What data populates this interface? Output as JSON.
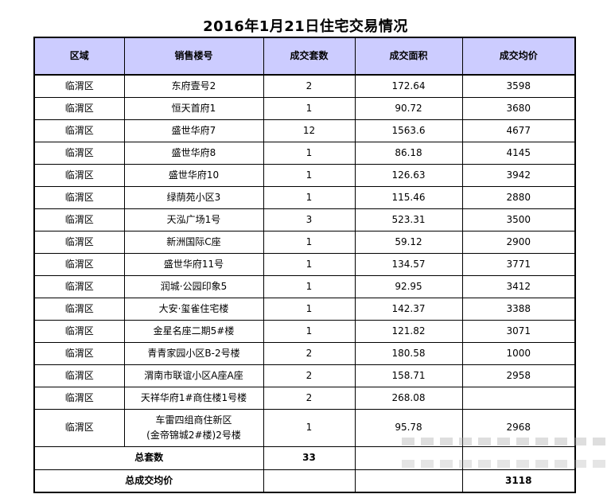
{
  "title": "2016年1月21日住宅交易情况",
  "colors": {
    "header_bg": "#ccccff",
    "border": "#000000",
    "text": "#000000"
  },
  "table": {
    "headers": [
      "区域",
      "销售楼号",
      "成交套数",
      "成交面积",
      "成交均价"
    ],
    "rows": [
      [
        "临渭区",
        "东府壹号2",
        "2",
        "172.64",
        "3598"
      ],
      [
        "临渭区",
        "恒天首府1",
        "1",
        "90.72",
        "3680"
      ],
      [
        "临渭区",
        "盛世华府7",
        "12",
        "1563.6",
        "4677"
      ],
      [
        "临渭区",
        "盛世华府8",
        "1",
        "86.18",
        "4145"
      ],
      [
        "临渭区",
        "盛世华府10",
        "1",
        "126.63",
        "3942"
      ],
      [
        "临渭区",
        "绿荫苑小区3",
        "1",
        "115.46",
        "2880"
      ],
      [
        "临渭区",
        "天泓广场1号",
        "3",
        "523.31",
        "3500"
      ],
      [
        "临渭区",
        "新洲国际C座",
        "1",
        "59.12",
        "2900"
      ],
      [
        "临渭区",
        "盛世华府11号",
        "1",
        "134.57",
        "3771"
      ],
      [
        "临渭区",
        "润城·公园印象5",
        "1",
        "92.95",
        "3412"
      ],
      [
        "临渭区",
        "大安·玺雀住宅楼",
        "1",
        "142.37",
        "3388"
      ],
      [
        "临渭区",
        "金星名座二期5#楼",
        "1",
        "121.82",
        "3071"
      ],
      [
        "临渭区",
        "青青家园小区B-2号楼",
        "2",
        "180.58",
        "1000"
      ],
      [
        "临渭区",
        "渭南市联谊小区A座A座",
        "2",
        "158.71",
        "2958"
      ],
      [
        "临渭区",
        "天祥华府1#商住楼1号楼",
        "2",
        "268.08",
        ""
      ],
      [
        "临渭区",
        "车雷四组商住新区\n(金帝锦城2#楼)2号楼",
        "1",
        "95.78",
        "2968"
      ]
    ],
    "totals": [
      {
        "label": "总套数",
        "units": "33",
        "area": "",
        "price": ""
      },
      {
        "label": "总成交均价",
        "units": "",
        "area": "",
        "price": "3118"
      }
    ]
  }
}
